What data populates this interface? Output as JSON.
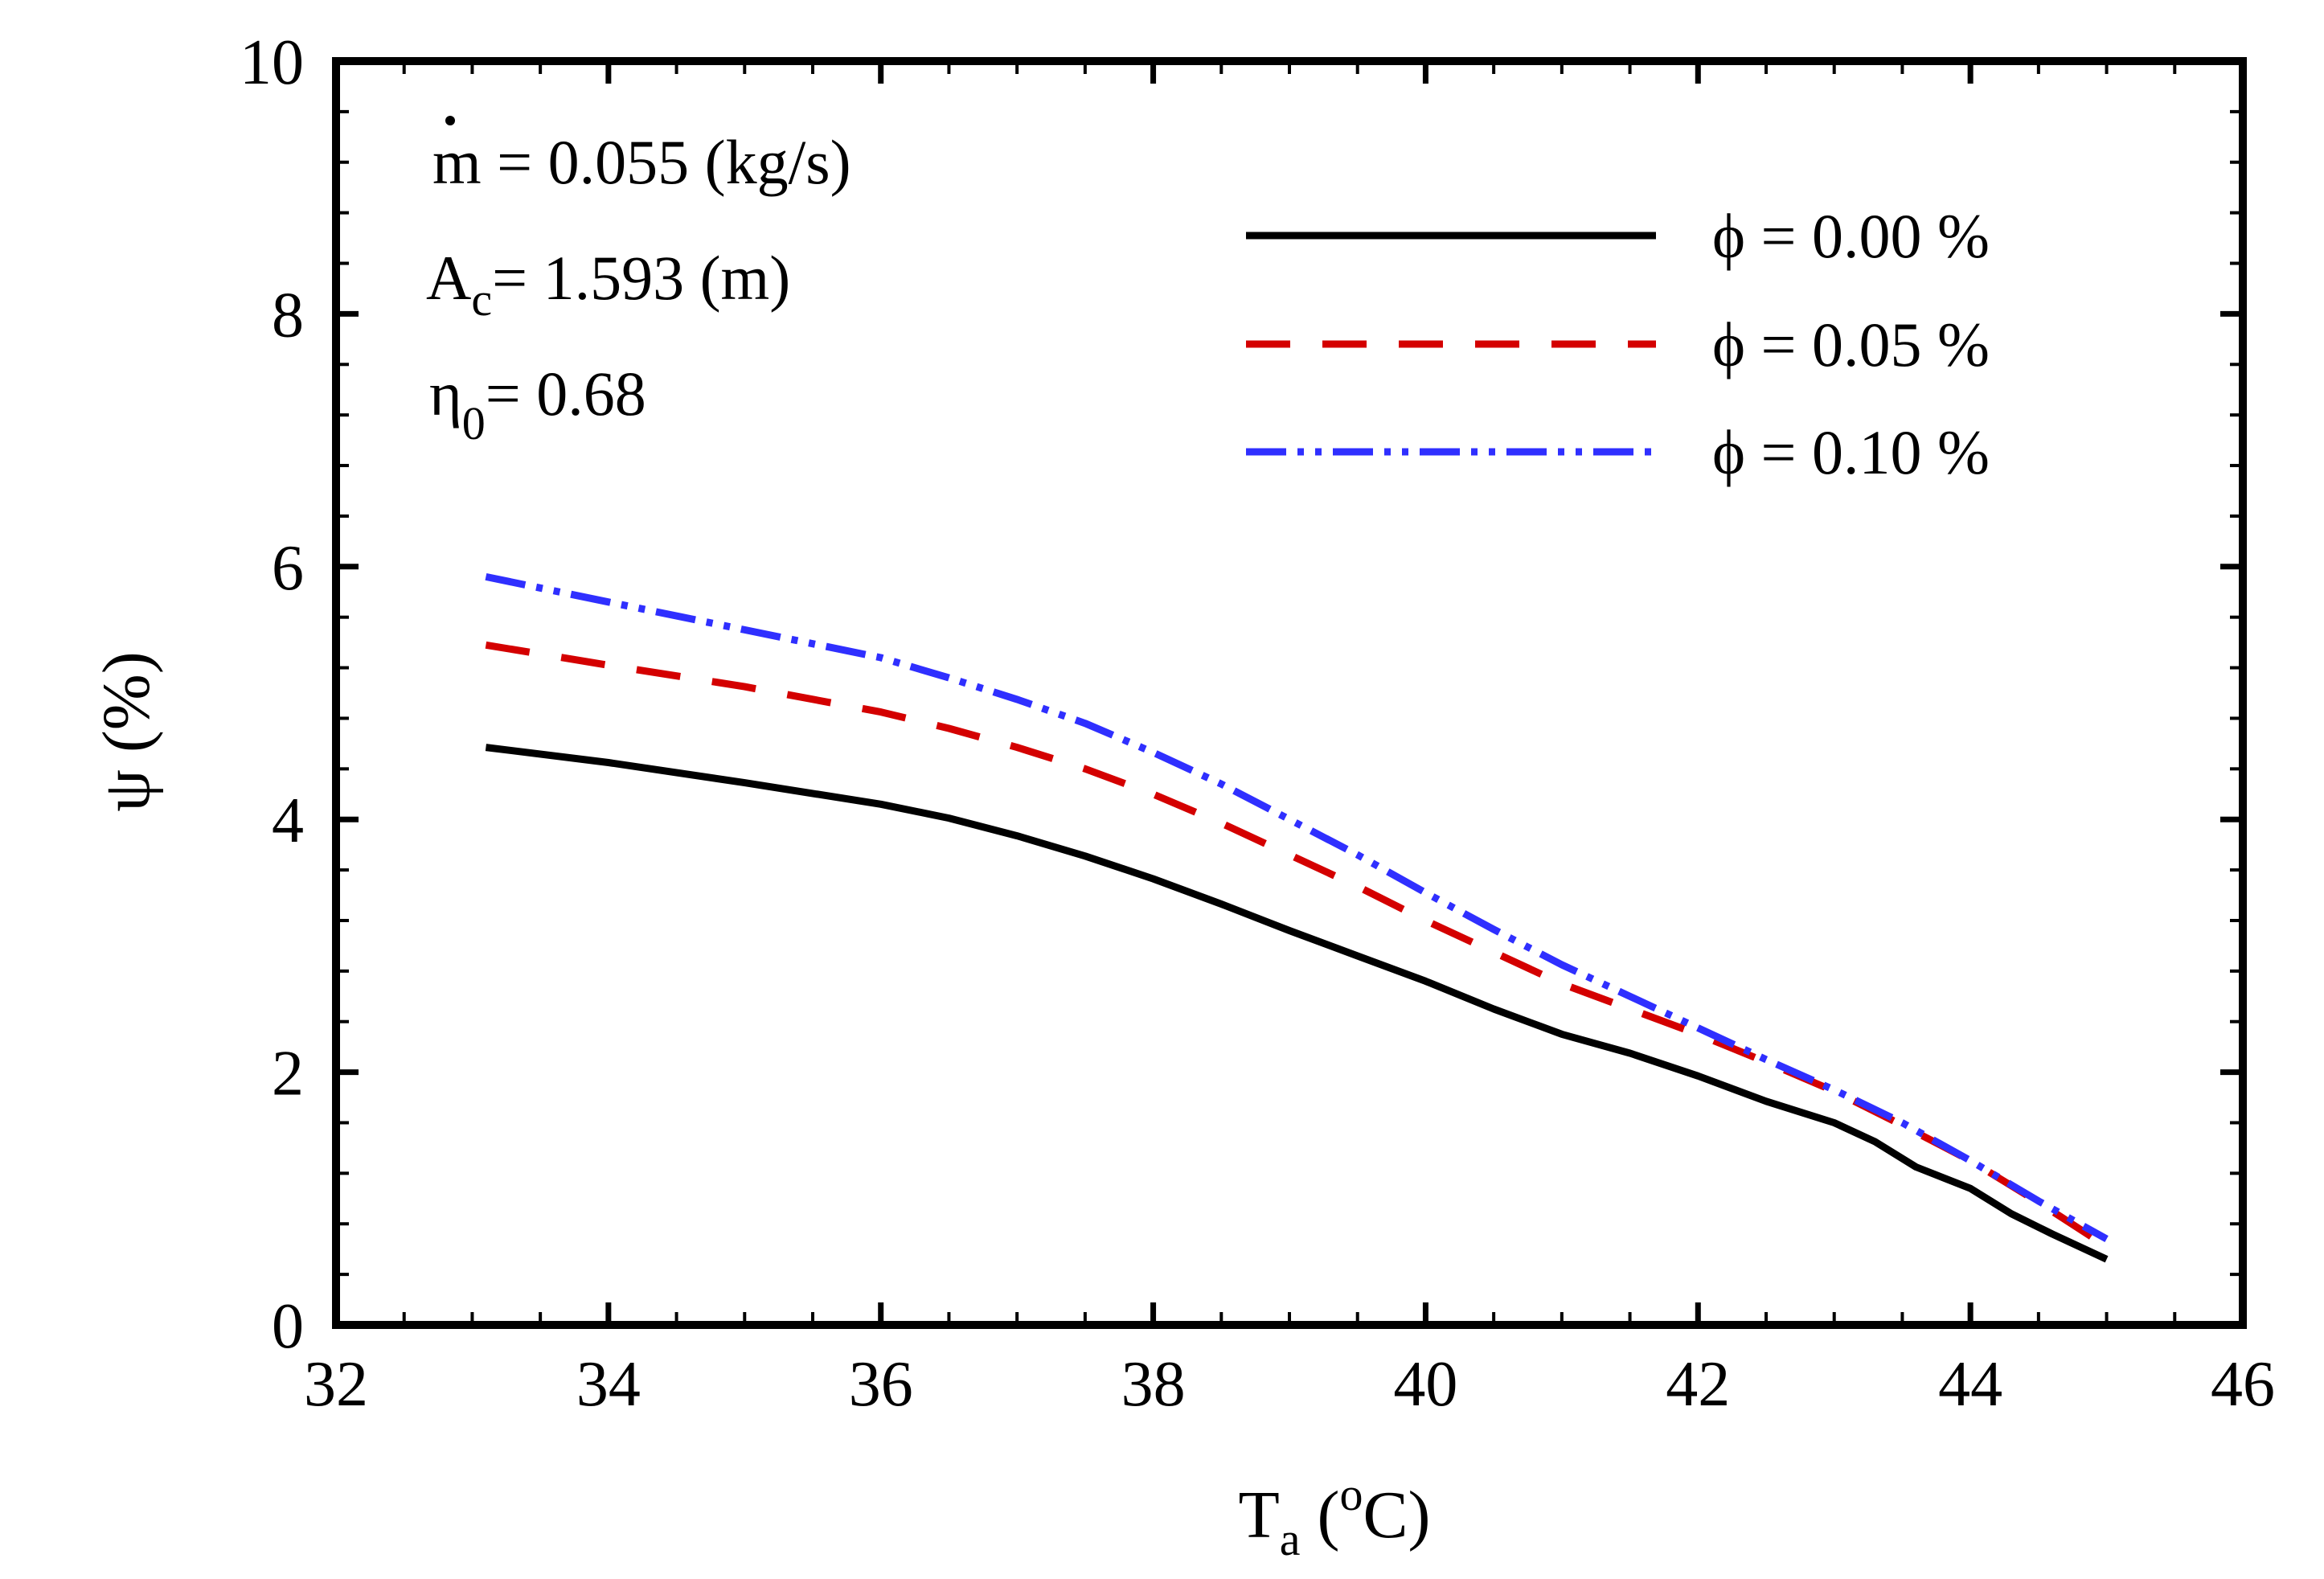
{
  "chart_data": {
    "type": "line",
    "title": "",
    "xlabel": "T",
    "xlabel_sub": "a",
    "xlabel_unit_open": " (",
    "xlabel_unit_sup": "o",
    "xlabel_unit_close": "C)",
    "ylabel": "ψ (%)",
    "xlim": [
      32,
      46
    ],
    "ylim": [
      0,
      10
    ],
    "xticks": [
      32,
      34,
      36,
      38,
      40,
      42,
      44,
      46
    ],
    "yticks": [
      0,
      2,
      4,
      6,
      8,
      10
    ],
    "x_minor_step": 0.5,
    "y_minor_step": 0.4,
    "grid": false,
    "legend_position": "top-right",
    "annotations": {
      "mdot_symbol": "m",
      "mdot_value": " = 0.055 (kg/s)",
      "area_symbol": "A",
      "area_sub": "c",
      "area_value": "= 1.593 (m)",
      "eta_symbol": "η",
      "eta_sub": "0",
      "eta_value": "= 0.68"
    },
    "series": [
      {
        "name": "ϕ = 0.00 %",
        "color": "#000000",
        "dash": "solid",
        "x": [
          33.1,
          34,
          35,
          36,
          36.5,
          37,
          37.5,
          38,
          38.5,
          39,
          39.5,
          40,
          40.5,
          41,
          41.5,
          42,
          42.5,
          43,
          43.3,
          43.6,
          44,
          44.3,
          44.6,
          45
        ],
        "y": [
          4.57,
          4.45,
          4.29,
          4.12,
          4.01,
          3.87,
          3.71,
          3.53,
          3.33,
          3.12,
          2.92,
          2.72,
          2.5,
          2.3,
          2.15,
          1.97,
          1.77,
          1.6,
          1.45,
          1.25,
          1.08,
          0.88,
          0.72,
          0.52
        ]
      },
      {
        "name": "ϕ = 0.05 %",
        "color": "#d40000",
        "dash": "dashed",
        "x": [
          33.1,
          34,
          35,
          36,
          36.5,
          37,
          37.5,
          38,
          38.5,
          39,
          39.5,
          40,
          40.5,
          41,
          41.5,
          42,
          42.5,
          43,
          43.5,
          44,
          44.5,
          45
        ],
        "y": [
          5.38,
          5.22,
          5.05,
          4.85,
          4.72,
          4.57,
          4.4,
          4.2,
          3.97,
          3.72,
          3.47,
          3.2,
          2.95,
          2.7,
          2.5,
          2.3,
          2.08,
          1.85,
          1.58,
          1.3,
          0.97,
          0.62
        ]
      },
      {
        "name": "ϕ = 0.10 %",
        "color": "#2f2fff",
        "dash": "dashdotdot",
        "x": [
          33.1,
          34,
          35,
          36,
          36.5,
          37,
          37.5,
          38,
          38.5,
          39,
          39.5,
          40,
          40.5,
          41,
          41.5,
          42,
          42.5,
          43,
          43.5,
          44,
          44.5,
          45
        ],
        "y": [
          5.92,
          5.72,
          5.5,
          5.28,
          5.12,
          4.95,
          4.76,
          4.53,
          4.28,
          4.0,
          3.72,
          3.42,
          3.13,
          2.85,
          2.6,
          2.35,
          2.1,
          1.86,
          1.6,
          1.3,
          0.98,
          0.68
        ]
      }
    ]
  }
}
